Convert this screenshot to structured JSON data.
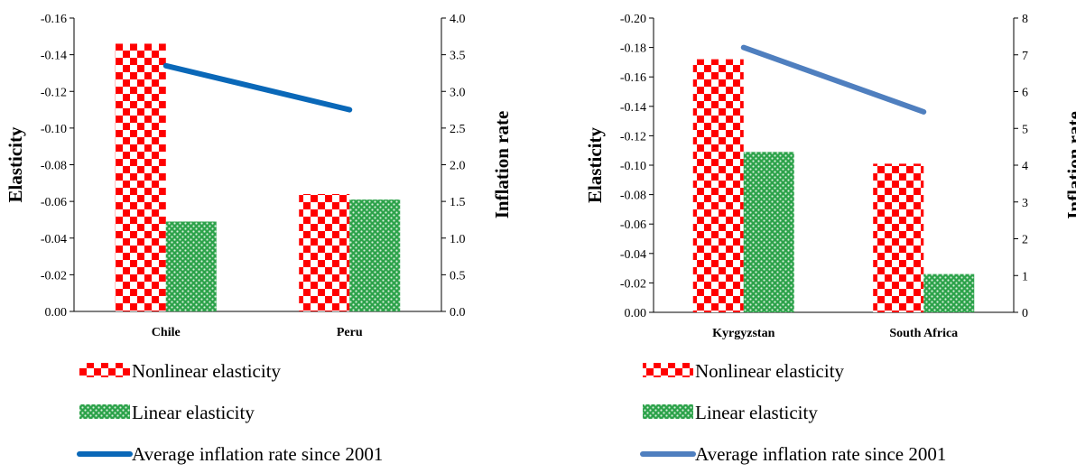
{
  "chart_data": [
    {
      "type": "bar",
      "categories": [
        "Chile",
        "Peru"
      ],
      "series": [
        {
          "name": "Nonlinear elasticity",
          "values": [
            -0.146,
            -0.064
          ],
          "axis": "left",
          "pattern": "checker",
          "color": "#ff0000"
        },
        {
          "name": "Linear elasticity",
          "values": [
            -0.049,
            -0.061
          ],
          "axis": "left",
          "pattern": "dots",
          "color": "#2ca24a"
        },
        {
          "name": "Average inflation rate since 2001",
          "values": [
            3.35,
            2.75
          ],
          "axis": "right",
          "type": "line",
          "color": "#0a68b8"
        }
      ],
      "ylabel": "Elasticity",
      "y2label": "Inflation rate",
      "ylim": [
        0,
        -0.16
      ],
      "yticks": [
        "0.00",
        "-0.02",
        "-0.04",
        "-0.06",
        "-0.08",
        "-0.10",
        "-0.12",
        "-0.14",
        "-0.16"
      ],
      "y2lim": [
        0,
        4
      ],
      "y2ticks": [
        "0.0",
        "0.5",
        "1.0",
        "1.5",
        "2.0",
        "2.5",
        "3.0",
        "3.5",
        "4.0"
      ],
      "legend": "bottom"
    },
    {
      "type": "bar",
      "categories": [
        "Kyrgyzstan",
        "South Africa"
      ],
      "series": [
        {
          "name": "Nonlinear elasticity",
          "values": [
            -0.172,
            -0.101
          ],
          "axis": "left",
          "pattern": "checker",
          "color": "#ff0000"
        },
        {
          "name": "Linear elasticity",
          "values": [
            -0.109,
            -0.026
          ],
          "axis": "left",
          "pattern": "dots",
          "color": "#2ca24a"
        },
        {
          "name": "Average inflation rate since 2001",
          "values": [
            7.2,
            5.45
          ],
          "axis": "right",
          "type": "line",
          "color": "#4f7fbf"
        }
      ],
      "ylabel": "Elasticity",
      "y2label": "Inflation rate",
      "ylim": [
        0,
        -0.2
      ],
      "yticks": [
        "0.00",
        "-0.02",
        "-0.04",
        "-0.06",
        "-0.08",
        "-0.10",
        "-0.12",
        "-0.14",
        "-0.16",
        "-0.18",
        "-0.20"
      ],
      "y2lim": [
        0,
        8
      ],
      "y2ticks": [
        "0",
        "1",
        "2",
        "3",
        "4",
        "5",
        "6",
        "7",
        "8"
      ],
      "legend": "bottom"
    }
  ]
}
